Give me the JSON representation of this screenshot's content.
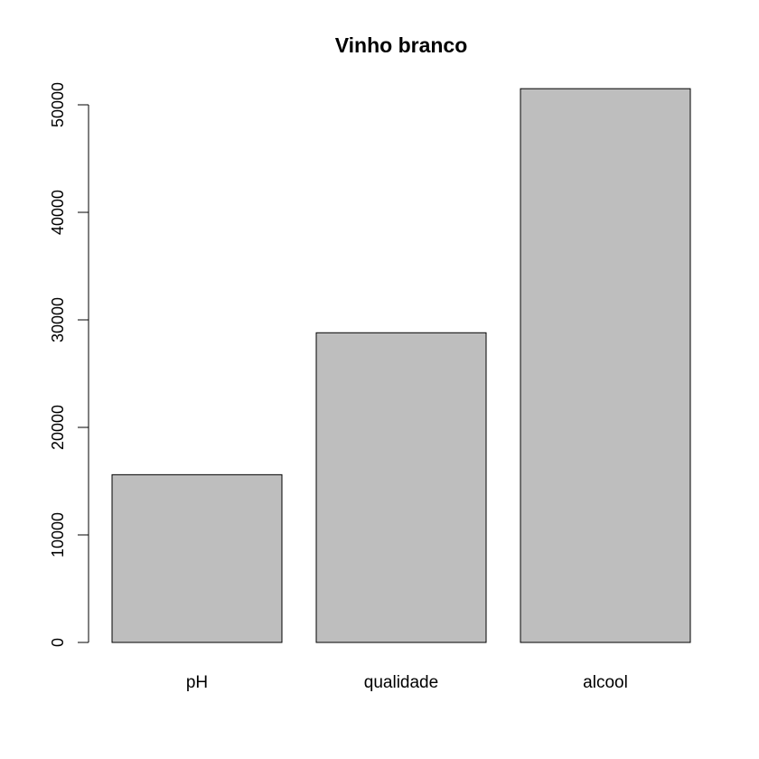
{
  "chart_data": {
    "type": "bar",
    "title": "Vinho branco",
    "xlabel": "",
    "ylabel": "",
    "categories": [
      "pH",
      "qualidade",
      "alcool"
    ],
    "values": [
      15600,
      28800,
      51500
    ],
    "ylim": [
      0,
      51500
    ],
    "yticks": [
      0,
      10000,
      20000,
      30000,
      40000,
      50000
    ],
    "ytick_labels": [
      "0",
      "10000",
      "20000",
      "30000",
      "40000",
      "50000"
    ],
    "grid": false,
    "legend": "none",
    "colors": {
      "bar_fill": "#bebebe",
      "bar_stroke": "#000000",
      "axis": "#000000",
      "background": "#ffffff"
    }
  }
}
